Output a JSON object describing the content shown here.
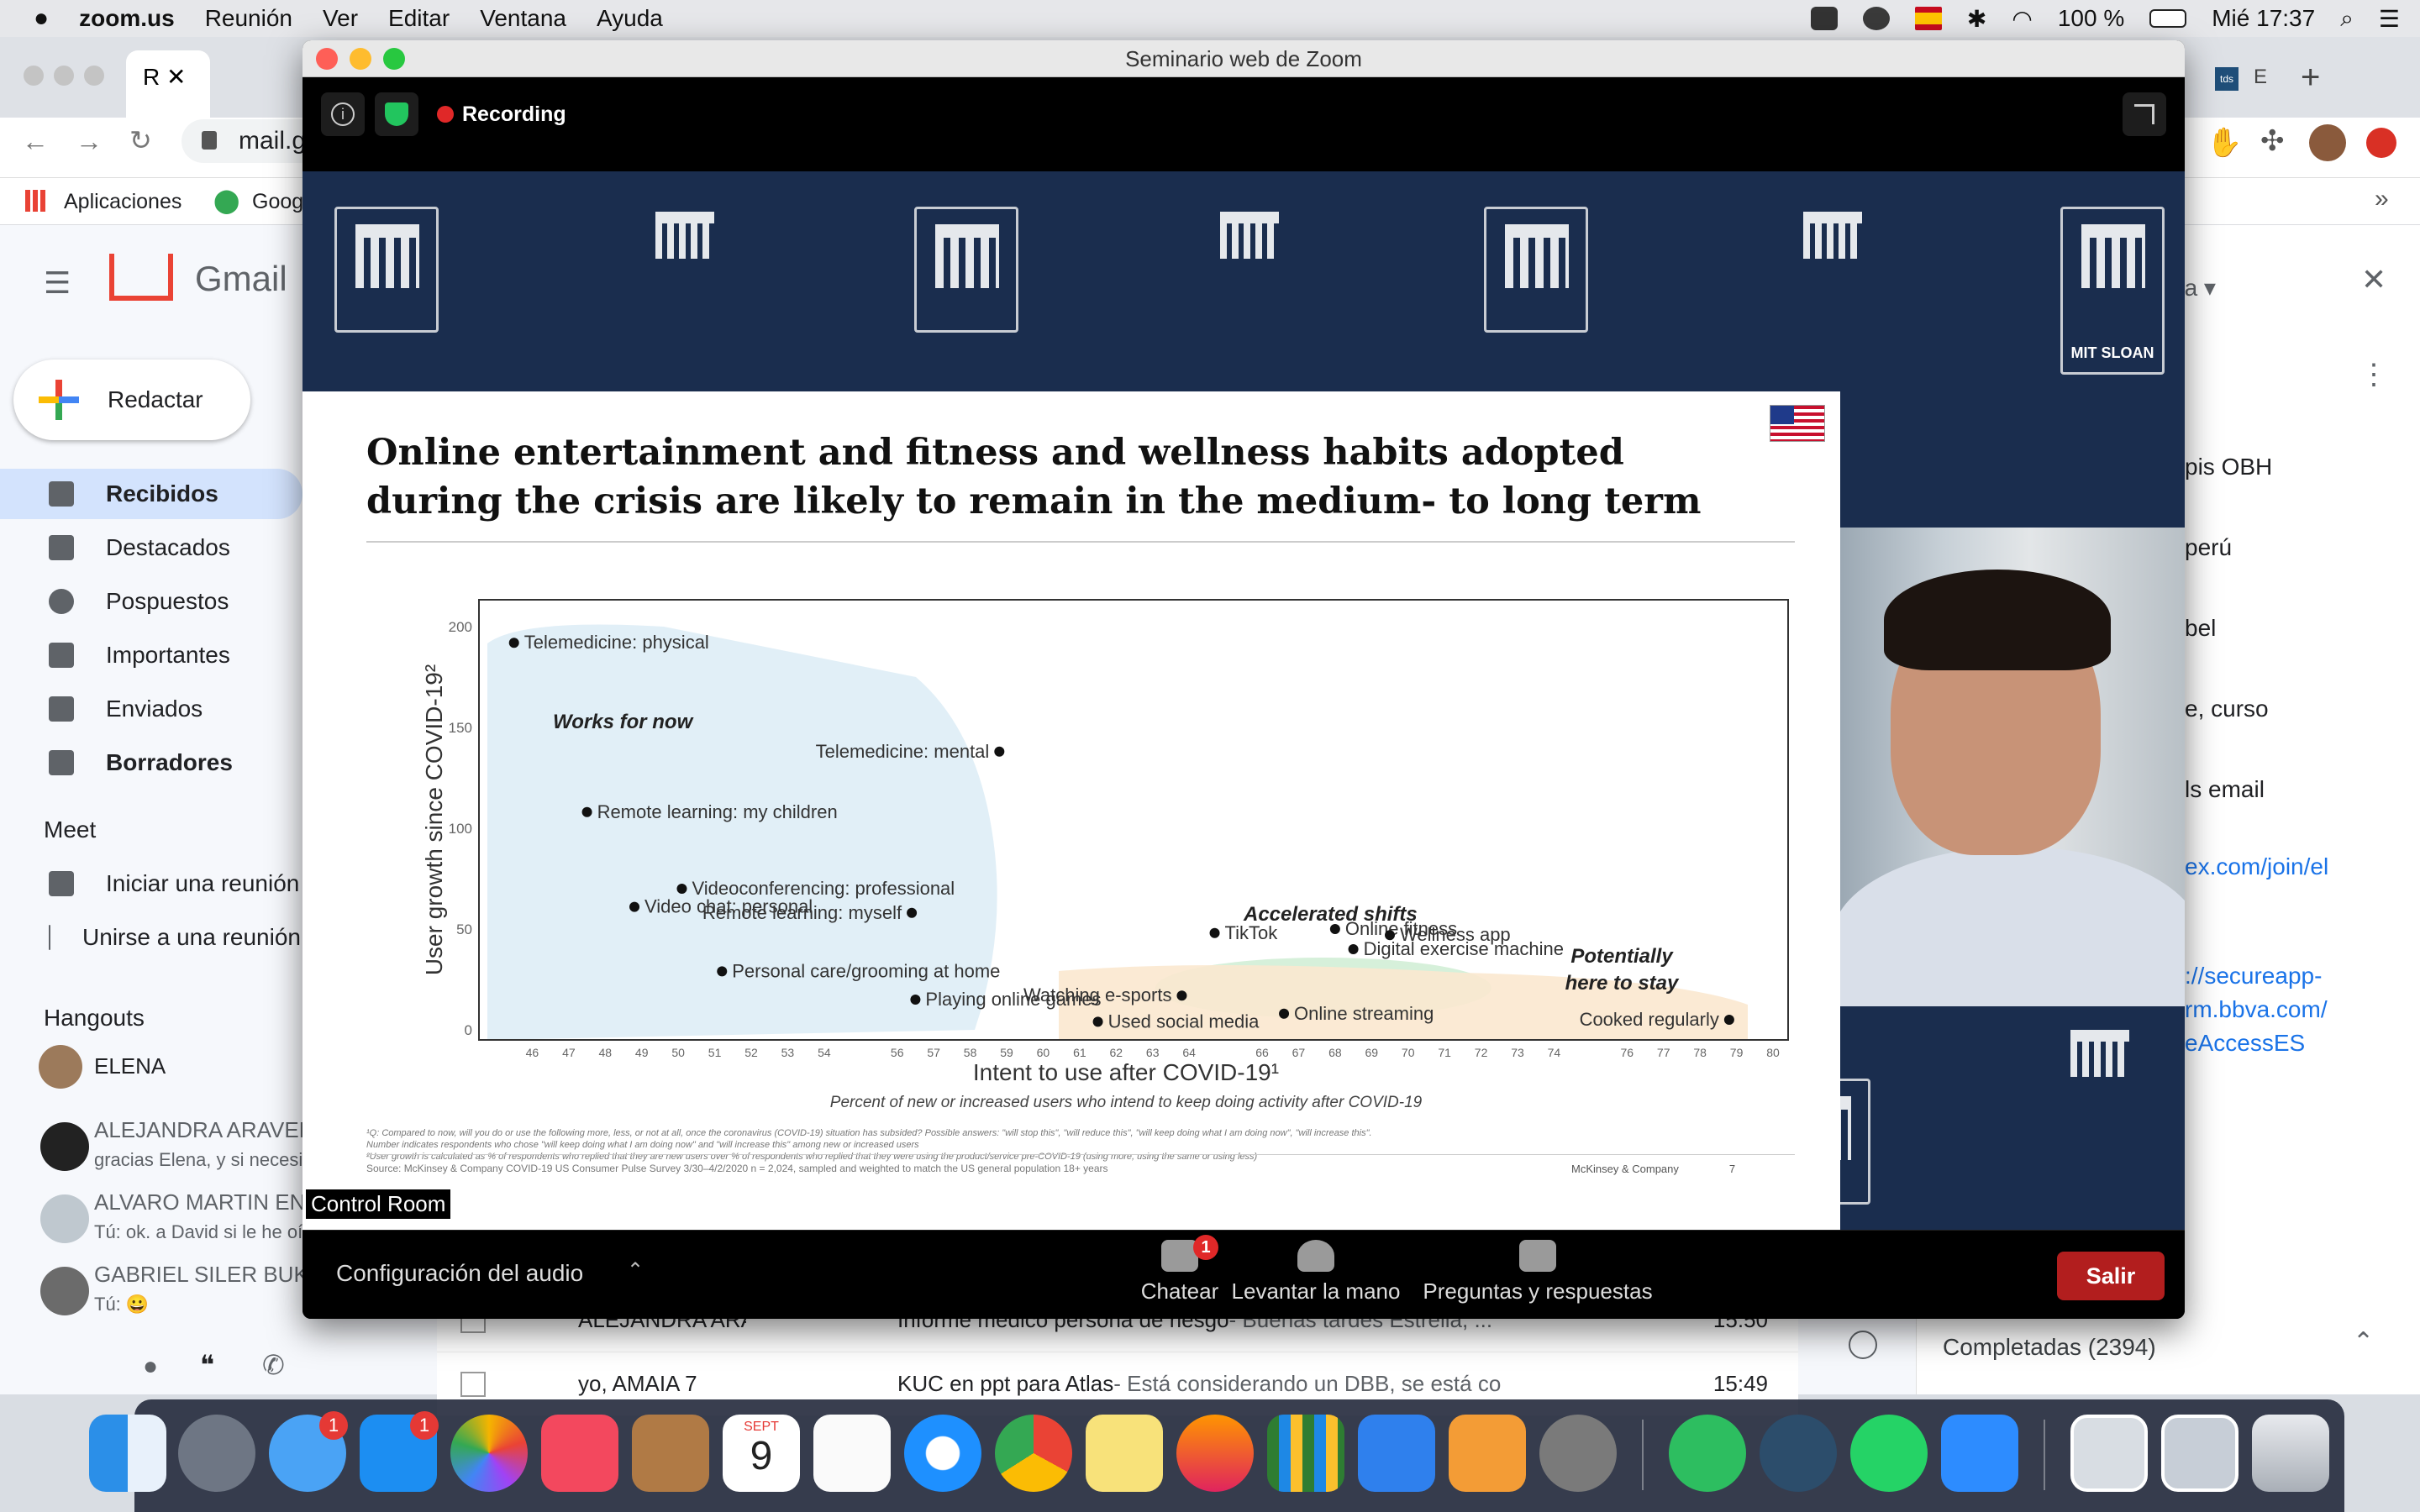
{
  "menubar": {
    "app": "zoom.us",
    "menus": [
      "Reunión",
      "Ver",
      "Editar",
      "Ventana",
      "Ayuda"
    ],
    "battery": "100 %",
    "clock": "Mié 17:37"
  },
  "browser": {
    "tab_letter": "R",
    "url": "mail.g",
    "bookmarks": [
      "Aplicaciones",
      "Goog"
    ],
    "tab_right": "tds",
    "tab_right2": "E"
  },
  "gmail": {
    "logo": "Gmail",
    "compose": "Redactar",
    "nav": [
      "Recibidos",
      "Destacados",
      "Pospuestos",
      "Importantes",
      "Enviados",
      "Borradores"
    ],
    "meet_header": "Meet",
    "meet_items": [
      "Iniciar una reunión",
      "Unirse a una reunión"
    ],
    "hangouts_header": "Hangouts",
    "hangouts_user": "ELENA",
    "hangouts": [
      {
        "name": "ALEJANDRA ARAVENA G.",
        "msg": "gracias Elena, y si necesitas"
      },
      {
        "name": "ALVARO MARTIN EN",
        "msg": "Tú: ok. a David si le he oído"
      },
      {
        "name": "GABRIEL SILER BUK",
        "msg": "Tú: 😀"
      }
    ],
    "mail_rows": [
      {
        "from": "ALEJANDRA ARAVENA G.",
        "subject": "Informe médico persona de riesgo",
        "snippet": " - Buenas tardes Estrella, ...",
        "time": "15:50"
      },
      {
        "from": "yo, AMAIA 7",
        "subject": "KUC en ppt para Atlas",
        "snippet": " - Está considerando un DBB, se está co",
        "time": "15:49"
      }
    ],
    "right_panel": {
      "header_suffix": "da",
      "items": [
        "pis OBH",
        "perú",
        "bel",
        "e, curso",
        "ls email"
      ],
      "links": [
        "ex.com/join/el",
        "://secureapp-",
        "rm.bbva.com/",
        "eAccessES"
      ],
      "completed": "Completadas (2394)"
    }
  },
  "zoom": {
    "window_title": "Seminario web de Zoom",
    "recording": "Recording",
    "control_room": "Control Room",
    "audio": "Configuración del audio",
    "toolbar": [
      {
        "label": "Chatear",
        "badge": "1"
      },
      {
        "label": "Levantar la mano"
      },
      {
        "label": "Preguntas y respuestas"
      }
    ],
    "leave": "Salir",
    "brand_label": "MIT SLOAN"
  },
  "slide": {
    "title_line1": "Online entertainment and fitness and wellness habits adopted",
    "title_line2": "during the crisis are likely to remain in the medium- to long term",
    "footnote1": "¹Q: Compared to now, will you do or use the following more, less, or not at all, once the coronavirus (COVID-19) situation has subsided? Possible answers: \"will stop this\", \"will reduce this\", \"will keep doing what I am doing now\", \"will increase this\".",
    "footnote2": "Number indicates respondents who chose \"will keep doing what I am doing now\" and \"will increase this\" among new or increased users",
    "footnote3": "²User growth is calculated as % of respondents who replied that they are new users over % of respondents who replied that they were using the product/service pre-COVID-19 (using more, using the same or using less)",
    "source": "Source: McKinsey & Company COVID-19 US Consumer Pulse Survey 3/30–4/2/2020 n = 2,024, sampled and weighted to match the US general population 18+ years",
    "credit": "McKinsey & Company",
    "page": "7"
  },
  "chart_data": {
    "type": "scatter",
    "xlabel": "Intent to use after COVID-19¹",
    "xsublabel": "Percent of new or increased users who intend to keep doing activity after COVID-19",
    "ylabel": "User growth since COVID-19²",
    "x_ticks": [
      46,
      47,
      48,
      49,
      50,
      51,
      52,
      53,
      54,
      56,
      57,
      58,
      59,
      60,
      61,
      62,
      63,
      64,
      66,
      67,
      68,
      69,
      70,
      71,
      72,
      73,
      74,
      76,
      77,
      78,
      79,
      80
    ],
    "y_ticks": [
      0,
      50,
      100,
      150,
      200
    ],
    "regions": [
      "Works for now",
      "Accelerated shifts",
      "Potentially here to stay"
    ],
    "points": [
      {
        "label": "Telemedicine: physical",
        "x": 45.5,
        "y": 192
      },
      {
        "label": "Telemedicine: mental",
        "x": 58.8,
        "y": 138
      },
      {
        "label": "Remote learning: my children",
        "x": 47.5,
        "y": 108
      },
      {
        "label": "Videoconferencing: professional",
        "x": 50.1,
        "y": 70
      },
      {
        "label": "Video chat: personal",
        "x": 48.8,
        "y": 61
      },
      {
        "label": "Remote learning: myself",
        "x": 56.4,
        "y": 58
      },
      {
        "label": "Personal care/grooming at home",
        "x": 51.2,
        "y": 29
      },
      {
        "label": "Playing online games",
        "x": 56.5,
        "y": 15
      },
      {
        "label": "TikTok",
        "x": 64.7,
        "y": 48
      },
      {
        "label": "Online fitness",
        "x": 68.0,
        "y": 50
      },
      {
        "label": "Wellness app",
        "x": 69.5,
        "y": 47
      },
      {
        "label": "Digital exercise machine",
        "x": 68.5,
        "y": 40
      },
      {
        "label": "Watching e-sports",
        "x": 63.8,
        "y": 17
      },
      {
        "label": "Online streaming",
        "x": 66.6,
        "y": 8
      },
      {
        "label": "Used social media",
        "x": 61.5,
        "y": 4
      },
      {
        "label": "Cooked regularly",
        "x": 78.8,
        "y": 5
      }
    ]
  },
  "dock": {
    "messages_badge": "1",
    "appstore_badge": "1",
    "calendar_month": "SEPT",
    "calendar_day": "9"
  }
}
